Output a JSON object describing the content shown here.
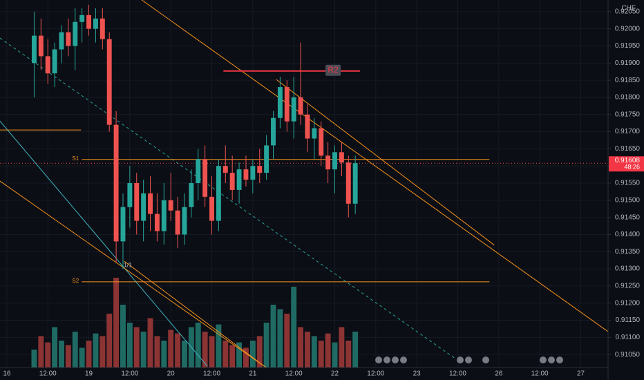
{
  "chart_data": {
    "type": "candlestick",
    "currency": "CHF",
    "annotation": "1/1",
    "last_price": {
      "value": 0.91608,
      "label": "0.91608"
    },
    "countdown": "48:26",
    "up_color": "#26a69a",
    "down_color": "#ef5350",
    "volume_up_color": "#1f6b64",
    "volume_down_color": "#8c3434",
    "xlim": [
      -2,
      176
    ],
    "ylim": [
      0.91012,
      0.92084
    ],
    "volume_lim": [
      0,
      100
    ],
    "xticks": [
      {
        "value": 0,
        "label": "16"
      },
      {
        "value": 12,
        "label": "12:00"
      },
      {
        "value": 24,
        "label": "19"
      },
      {
        "value": 36,
        "label": "12:00"
      },
      {
        "value": 48,
        "label": "20"
      },
      {
        "value": 60,
        "label": "12:00"
      },
      {
        "value": 72,
        "label": "21"
      },
      {
        "value": 84,
        "label": "12:00"
      },
      {
        "value": 96,
        "label": "22"
      },
      {
        "value": 108,
        "label": "12:00"
      },
      {
        "value": 120,
        "label": "23"
      },
      {
        "value": 132,
        "label": "12:00"
      },
      {
        "value": 144,
        "label": "26"
      },
      {
        "value": 156,
        "label": "12:00"
      },
      {
        "value": 168,
        "label": "27"
      }
    ],
    "yticks": [
      {
        "value": 0.9205,
        "label": "0.92050"
      },
      {
        "value": 0.92,
        "label": "0.92000"
      },
      {
        "value": 0.9195,
        "label": "0.91950"
      },
      {
        "value": 0.919,
        "label": "0.91900"
      },
      {
        "value": 0.9185,
        "label": "0.91850"
      },
      {
        "value": 0.918,
        "label": "0.91800"
      },
      {
        "value": 0.9175,
        "label": "0.91750"
      },
      {
        "value": 0.917,
        "label": "0.91700"
      },
      {
        "value": 0.9165,
        "label": "0.91650"
      },
      {
        "value": 0.916,
        "label": "0.91600"
      },
      {
        "value": 0.9155,
        "label": "0.91550"
      },
      {
        "value": 0.915,
        "label": "0.91500"
      },
      {
        "value": 0.9145,
        "label": "0.91450"
      },
      {
        "value": 0.914,
        "label": "0.91400"
      },
      {
        "value": 0.9135,
        "label": "0.91350"
      },
      {
        "value": 0.913,
        "label": "0.91300"
      },
      {
        "value": 0.9125,
        "label": "0.91250"
      },
      {
        "value": 0.912,
        "label": "0.91200"
      },
      {
        "value": 0.9115,
        "label": "0.91150"
      },
      {
        "value": 0.911,
        "label": "0.91100"
      },
      {
        "value": 0.9105,
        "label": "0.91050"
      }
    ],
    "x": [
      8,
      10,
      12,
      14,
      16,
      18,
      20,
      22,
      24,
      26,
      28,
      30,
      32,
      34,
      36,
      38,
      40,
      42,
      44,
      46,
      48,
      50,
      52,
      54,
      56,
      58,
      60,
      62,
      64,
      66,
      68,
      70,
      72,
      74,
      76,
      78,
      80,
      82,
      84,
      86,
      88,
      90,
      92,
      94,
      96,
      98,
      100,
      102
    ],
    "open": [
      0.919,
      0.9198,
      0.9192,
      0.9187,
      0.9194,
      0.9199,
      0.9195,
      0.9202,
      0.9204,
      0.92,
      0.9203,
      0.9197,
      0.9172,
      0.9138,
      0.9148,
      0.9155,
      0.9144,
      0.9152,
      0.9146,
      0.9141,
      0.915,
      0.9147,
      0.914,
      0.9148,
      0.9155,
      0.9162,
      0.9151,
      0.9144,
      0.916,
      0.9158,
      0.9153,
      0.9159,
      0.9156,
      0.916,
      0.9158,
      0.9166,
      0.9174,
      0.9183,
      0.9173,
      0.918,
      0.9175,
      0.9168,
      0.9171,
      0.9163,
      0.9159,
      0.9164,
      0.9161,
      0.9149
    ],
    "high": [
      0.9205,
      0.9203,
      0.9197,
      0.9196,
      0.9201,
      0.9203,
      0.9206,
      0.9206,
      0.9207,
      0.9206,
      0.9206,
      0.9199,
      0.9176,
      0.9152,
      0.916,
      0.9158,
      0.9156,
      0.9157,
      0.9152,
      0.9155,
      0.9158,
      0.9151,
      0.9152,
      0.9159,
      0.9165,
      0.9166,
      0.9157,
      0.9162,
      0.9166,
      0.9163,
      0.9161,
      0.9163,
      0.9162,
      0.9165,
      0.9169,
      0.9176,
      0.9186,
      0.9185,
      0.9186,
      0.9196,
      0.9178,
      0.9174,
      0.9173,
      0.9167,
      0.9166,
      0.9167,
      0.9163,
      0.9163
    ],
    "low": [
      0.918,
      0.9188,
      0.9184,
      0.9183,
      0.919,
      0.9192,
      0.9188,
      0.9196,
      0.9198,
      0.9196,
      0.9194,
      0.917,
      0.9132,
      0.913,
      0.9142,
      0.914,
      0.9138,
      0.9141,
      0.9138,
      0.9137,
      0.9144,
      0.9136,
      0.9137,
      0.9145,
      0.915,
      0.9148,
      0.914,
      0.9141,
      0.9155,
      0.915,
      0.9149,
      0.9154,
      0.9152,
      0.9155,
      0.9156,
      0.9162,
      0.9171,
      0.917,
      0.9168,
      0.9172,
      0.9164,
      0.9162,
      0.916,
      0.9155,
      0.9152,
      0.9157,
      0.9145,
      0.9146
    ],
    "close": [
      0.9198,
      0.9192,
      0.9187,
      0.9194,
      0.9199,
      0.9195,
      0.9202,
      0.9204,
      0.92,
      0.9203,
      0.9197,
      0.9172,
      0.9138,
      0.9148,
      0.9155,
      0.9144,
      0.9152,
      0.9146,
      0.9141,
      0.915,
      0.9147,
      0.914,
      0.9148,
      0.9155,
      0.9162,
      0.9151,
      0.9144,
      0.916,
      0.9158,
      0.9153,
      0.9159,
      0.9156,
      0.916,
      0.9158,
      0.9166,
      0.9174,
      0.9183,
      0.9173,
      0.918,
      0.9175,
      0.9168,
      0.9171,
      0.9163,
      0.9159,
      0.9164,
      0.9161,
      0.9149,
      0.91608
    ],
    "volume": [
      20,
      35,
      28,
      45,
      30,
      25,
      40,
      22,
      30,
      38,
      35,
      60,
      100,
      70,
      50,
      45,
      40,
      55,
      35,
      30,
      42,
      38,
      30,
      45,
      50,
      40,
      35,
      48,
      30,
      25,
      28,
      22,
      30,
      35,
      50,
      70,
      65,
      60,
      90,
      45,
      40,
      35,
      30,
      38,
      28,
      45,
      30,
      40
    ],
    "drawings": [
      {
        "kind": "trend",
        "t1": 39.5,
        "p1": 0.92084,
        "t2": 178.1,
        "p2": 0.91102,
        "color": "#f7931a",
        "dash": false
      },
      {
        "kind": "trend",
        "t1": 78.9,
        "p1": 0.91852,
        "t2": 142.7,
        "p2": 0.91369,
        "color": "#f7931a",
        "dash": false
      },
      {
        "kind": "trend",
        "t1": -2.02,
        "p1": 0.91973,
        "t2": 131.6,
        "p2": 0.91036,
        "color": "#26a69a",
        "dash": true
      },
      {
        "kind": "trend",
        "t1": -2.02,
        "p1": 0.91731,
        "t2": 58.7,
        "p2": 0.91016,
        "color": "#3fb7c4",
        "dash": false
      },
      {
        "kind": "trend",
        "t1": -2.02,
        "p1": 0.91556,
        "t2": 75.9,
        "p2": 0.91012,
        "color": "#f7931a",
        "dash": false
      },
      {
        "kind": "trend",
        "t1": 34.4,
        "p1": 0.91322,
        "t2": 75.9,
        "p2": 0.91012,
        "color": "#f7931a",
        "dash": false
      },
      {
        "kind": "level",
        "t1": -2.02,
        "t2": 21.7,
        "p1": 0.91705,
        "color": "#f7931a"
      },
      {
        "kind": "level",
        "t1": 21.9,
        "t2": 141.3,
        "p1": 0.91619,
        "color": "#f7931a",
        "label": "S1"
      },
      {
        "kind": "level",
        "t1": 21.9,
        "t2": 141.3,
        "p1": 0.91262,
        "color": "#f7931a",
        "label": "S2"
      },
      {
        "kind": "level",
        "t1": 63.4,
        "t2": 103.4,
        "p1": 0.91877,
        "color": "#f23645",
        "label": "R2",
        "boxed": true
      }
    ]
  }
}
